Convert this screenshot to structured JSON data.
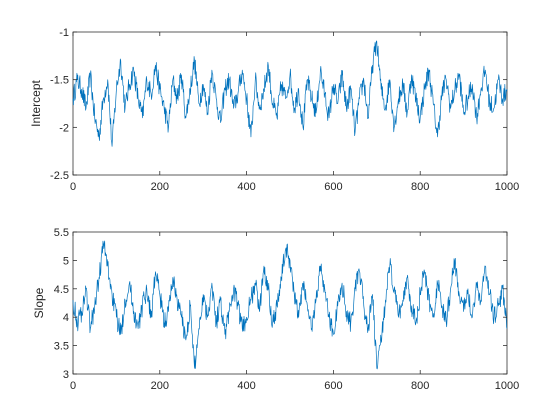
{
  "chart_data": [
    {
      "type": "line",
      "title": "",
      "xlabel": "",
      "ylabel": "Intercept",
      "xlim": [
        0,
        1000
      ],
      "ylim": [
        -2.5,
        -1
      ],
      "xticks": [
        0,
        200,
        400,
        600,
        800,
        1000
      ],
      "xtick_labels": [
        "0",
        "200",
        "400",
        "600",
        "800",
        "1000"
      ],
      "yticks": [
        -2.5,
        -2,
        -1.5,
        -1
      ],
      "ytick_labels": [
        "-2.5",
        "-2",
        "-1.5",
        "-1"
      ],
      "grid": false,
      "color": "#0072BD",
      "series": [
        {
          "x": [
            0,
            10,
            20,
            30,
            40,
            50,
            60,
            70,
            80,
            90,
            100,
            110,
            120,
            130,
            140,
            150,
            160,
            170,
            180,
            190,
            200,
            210,
            220,
            230,
            240,
            250,
            260,
            270,
            280,
            290,
            300,
            310,
            320,
            330,
            340,
            350,
            360,
            370,
            380,
            390,
            400,
            410,
            420,
            430,
            440,
            450,
            460,
            470,
            480,
            490,
            500,
            510,
            520,
            530,
            540,
            550,
            560,
            570,
            580,
            590,
            600,
            610,
            620,
            630,
            640,
            650,
            660,
            670,
            680,
            690,
            700,
            710,
            720,
            730,
            740,
            750,
            760,
            770,
            780,
            790,
            800,
            810,
            820,
            830,
            840,
            850,
            860,
            870,
            880,
            890,
            900,
            910,
            920,
            930,
            940,
            950,
            960,
            970,
            980,
            990,
            1000
          ],
          "values": [
            -1.7,
            -1.5,
            -1.6,
            -1.8,
            -1.45,
            -1.9,
            -2.1,
            -1.7,
            -1.5,
            -2.2,
            -1.6,
            -1.3,
            -1.8,
            -1.55,
            -1.4,
            -1.7,
            -1.9,
            -1.5,
            -1.65,
            -1.35,
            -1.6,
            -1.8,
            -2.0,
            -1.5,
            -1.7,
            -1.45,
            -1.9,
            -1.6,
            -1.3,
            -1.75,
            -1.55,
            -1.85,
            -1.4,
            -1.7,
            -1.95,
            -1.6,
            -1.5,
            -1.8,
            -1.65,
            -1.4,
            -1.7,
            -2.1,
            -1.5,
            -1.8,
            -1.6,
            -1.35,
            -1.75,
            -1.9,
            -1.55,
            -1.7,
            -1.45,
            -1.8,
            -1.6,
            -2.0,
            -1.5,
            -1.7,
            -1.85,
            -1.4,
            -1.65,
            -1.9,
            -1.55,
            -1.75,
            -1.45,
            -1.8,
            -1.6,
            -2.05,
            -1.7,
            -1.5,
            -1.9,
            -1.35,
            -1.1,
            -1.6,
            -1.8,
            -1.5,
            -2.0,
            -1.7,
            -1.55,
            -1.85,
            -1.45,
            -1.7,
            -1.9,
            -1.6,
            -1.4,
            -1.75,
            -2.1,
            -1.65,
            -1.5,
            -1.8,
            -1.6,
            -1.45,
            -1.85,
            -1.7,
            -1.55,
            -1.9,
            -1.6,
            -1.4,
            -1.75,
            -1.8,
            -1.5,
            -1.7,
            -1.6
          ]
        }
      ]
    },
    {
      "type": "line",
      "title": "",
      "xlabel": "",
      "ylabel": "Slope",
      "xlim": [
        0,
        1000
      ],
      "ylim": [
        3,
        5.5
      ],
      "xticks": [
        0,
        200,
        400,
        600,
        800,
        1000
      ],
      "xtick_labels": [
        "0",
        "200",
        "400",
        "600",
        "800",
        "1000"
      ],
      "yticks": [
        3,
        3.5,
        4,
        4.5,
        5,
        5.5
      ],
      "ytick_labels": [
        "3",
        "3.5",
        "4",
        "4.5",
        "5",
        "5.5"
      ],
      "grid": false,
      "color": "#0072BD",
      "series": [
        {
          "x": [
            0,
            10,
            20,
            30,
            40,
            50,
            60,
            70,
            80,
            90,
            100,
            110,
            120,
            130,
            140,
            150,
            160,
            170,
            180,
            190,
            200,
            210,
            220,
            230,
            240,
            250,
            260,
            270,
            280,
            290,
            300,
            310,
            320,
            330,
            340,
            350,
            360,
            370,
            380,
            390,
            400,
            410,
            420,
            430,
            440,
            450,
            460,
            470,
            480,
            490,
            500,
            510,
            520,
            530,
            540,
            550,
            560,
            570,
            580,
            590,
            600,
            610,
            620,
            630,
            640,
            650,
            660,
            670,
            680,
            690,
            700,
            710,
            720,
            730,
            740,
            750,
            760,
            770,
            780,
            790,
            800,
            810,
            820,
            830,
            840,
            850,
            860,
            870,
            880,
            890,
            900,
            910,
            920,
            930,
            940,
            950,
            960,
            970,
            980,
            990,
            1000
          ],
          "values": [
            4.3,
            3.9,
            4.1,
            4.5,
            3.8,
            4.2,
            4.7,
            5.3,
            4.9,
            4.4,
            4.0,
            3.7,
            4.3,
            4.6,
            4.1,
            3.8,
            4.2,
            4.5,
            4.0,
            4.8,
            4.4,
            3.9,
            4.1,
            4.7,
            4.3,
            4.0,
            3.6,
            4.2,
            3.1,
            3.8,
            4.4,
            4.0,
            4.6,
            3.9,
            4.3,
            3.7,
            4.1,
            4.5,
            4.2,
            3.8,
            4.0,
            4.3,
            4.6,
            4.1,
            4.9,
            4.5,
            3.9,
            4.2,
            4.7,
            5.2,
            5.0,
            4.4,
            4.0,
            4.6,
            4.2,
            3.8,
            4.3,
            4.9,
            4.5,
            4.0,
            3.7,
            4.2,
            4.6,
            4.1,
            3.9,
            4.5,
            4.8,
            4.2,
            3.8,
            4.4,
            3.1,
            3.6,
            4.3,
            4.9,
            4.5,
            4.0,
            4.3,
            4.7,
            4.2,
            3.9,
            4.4,
            4.8,
            4.3,
            4.0,
            4.6,
            4.2,
            3.9,
            4.5,
            5.0,
            4.4,
            4.1,
            4.5,
            4.0,
            4.6,
            4.3,
            4.9,
            4.4,
            4.0,
            4.2,
            4.5,
            3.8
          ]
        }
      ]
    }
  ]
}
